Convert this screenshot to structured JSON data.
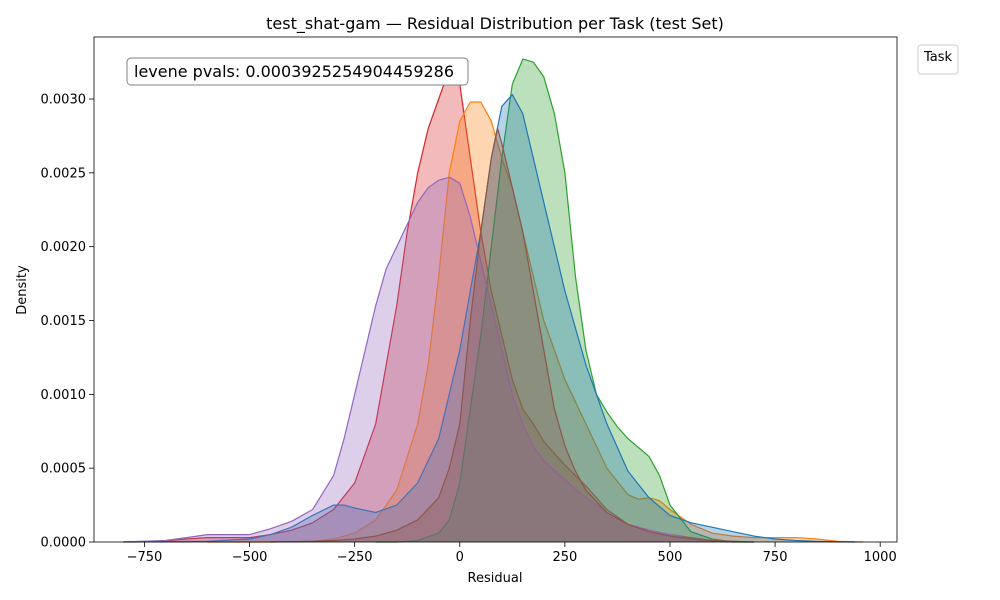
{
  "chart_data": {
    "type": "area",
    "title": "test_shat-gam — Residual Distribution per Task (test Set)",
    "xlabel": "Residual",
    "ylabel": "Density",
    "xlim": [
      -870,
      1040
    ],
    "ylim": [
      0,
      0.00342
    ],
    "xticks": [
      -750,
      -500,
      -250,
      0,
      250,
      500,
      750,
      1000
    ],
    "xtick_labels": [
      "−750",
      "−500",
      "−250",
      "0",
      "250",
      "500",
      "750",
      "1000"
    ],
    "yticks": [
      0,
      0.0005,
      0.001,
      0.0015,
      0.002,
      0.0025,
      0.003
    ],
    "ytick_labels": [
      "0.0000",
      "0.0005",
      "0.0010",
      "0.0015",
      "0.0020",
      "0.0025",
      "0.0030"
    ],
    "grid": false,
    "annotation": "levene pvals: 0.0003925254904459286",
    "legend": {
      "title": "Task",
      "position": "upper-right-outside",
      "entries": []
    },
    "series": [
      {
        "color": "#d62728",
        "points": [
          [
            -800,
            0
          ],
          [
            -700,
            8e-06
          ],
          [
            -650,
            2e-05
          ],
          [
            -600,
            3e-05
          ],
          [
            -550,
            3e-05
          ],
          [
            -500,
            3e-05
          ],
          [
            -450,
            5e-05
          ],
          [
            -400,
            8e-05
          ],
          [
            -350,
            0.00013
          ],
          [
            -300,
            0.00022
          ],
          [
            -250,
            0.0004
          ],
          [
            -200,
            0.0008
          ],
          [
            -175,
            0.0012
          ],
          [
            -150,
            0.0016
          ],
          [
            -125,
            0.0021
          ],
          [
            -100,
            0.0025
          ],
          [
            -75,
            0.0028
          ],
          [
            -50,
            0.003
          ],
          [
            -25,
            0.0032
          ],
          [
            -10,
            0.00322
          ],
          [
            0,
            0.0031
          ],
          [
            25,
            0.0026
          ],
          [
            50,
            0.0021
          ],
          [
            75,
            0.0017
          ],
          [
            100,
            0.0014
          ],
          [
            125,
            0.0011
          ],
          [
            150,
            0.0009
          ],
          [
            175,
            0.0008
          ],
          [
            200,
            0.00068
          ],
          [
            250,
            0.00052
          ],
          [
            300,
            0.00038
          ],
          [
            350,
            0.00022
          ],
          [
            400,
            0.00012
          ],
          [
            450,
            8e-05
          ],
          [
            500,
            5e-05
          ],
          [
            550,
            3e-05
          ],
          [
            600,
            1e-05
          ],
          [
            650,
            0
          ]
        ]
      },
      {
        "color": "#ff7f0e",
        "points": [
          [
            -600,
            0
          ],
          [
            -450,
            0
          ],
          [
            -350,
            5e-06
          ],
          [
            -300,
            2e-05
          ],
          [
            -250,
            6e-05
          ],
          [
            -200,
            0.00015
          ],
          [
            -150,
            0.00035
          ],
          [
            -100,
            0.0008
          ],
          [
            -75,
            0.0012
          ],
          [
            -50,
            0.0018
          ],
          [
            -25,
            0.0025
          ],
          [
            0,
            0.00285
          ],
          [
            25,
            0.00298
          ],
          [
            50,
            0.00298
          ],
          [
            75,
            0.00285
          ],
          [
            100,
            0.0026
          ],
          [
            125,
            0.0024
          ],
          [
            150,
            0.0021
          ],
          [
            175,
            0.0018
          ],
          [
            200,
            0.0015
          ],
          [
            250,
            0.0011
          ],
          [
            300,
            0.0008
          ],
          [
            350,
            0.0005
          ],
          [
            400,
            0.00032
          ],
          [
            425,
            0.00029
          ],
          [
            450,
            0.0003
          ],
          [
            475,
            0.00028
          ],
          [
            500,
            0.00022
          ],
          [
            550,
            0.00012
          ],
          [
            600,
            6e-05
          ],
          [
            650,
            4e-05
          ],
          [
            700,
            3e-05
          ],
          [
            750,
            3e-05
          ],
          [
            800,
            3e-05
          ],
          [
            850,
            2e-05
          ],
          [
            900,
            5e-06
          ],
          [
            960,
            0
          ]
        ]
      },
      {
        "color": "#2ca02c",
        "points": [
          [
            -200,
            0
          ],
          [
            -150,
            0
          ],
          [
            -100,
            1e-05
          ],
          [
            -50,
            6e-05
          ],
          [
            -25,
            0.00015
          ],
          [
            0,
            0.0004
          ],
          [
            25,
            0.0009
          ],
          [
            50,
            0.0014
          ],
          [
            75,
            0.002
          ],
          [
            100,
            0.0026
          ],
          [
            125,
            0.0031
          ],
          [
            150,
            0.00327
          ],
          [
            175,
            0.00325
          ],
          [
            200,
            0.00315
          ],
          [
            225,
            0.0029
          ],
          [
            250,
            0.0025
          ],
          [
            275,
            0.0018
          ],
          [
            300,
            0.0013
          ],
          [
            325,
            0.001
          ],
          [
            350,
            0.00088
          ],
          [
            375,
            0.00078
          ],
          [
            400,
            0.0007
          ],
          [
            425,
            0.00064
          ],
          [
            450,
            0.00058
          ],
          [
            475,
            0.00045
          ],
          [
            500,
            0.00025
          ],
          [
            550,
            7e-05
          ],
          [
            600,
            2e-05
          ],
          [
            650,
            0
          ],
          [
            700,
            0
          ]
        ]
      },
      {
        "color": "#1f77b4",
        "points": [
          [
            -800,
            0
          ],
          [
            -600,
            5e-06
          ],
          [
            -500,
            2e-05
          ],
          [
            -450,
            5e-05
          ],
          [
            -400,
            0.0001
          ],
          [
            -350,
            0.00018
          ],
          [
            -300,
            0.00025
          ],
          [
            -275,
            0.00025
          ],
          [
            -250,
            0.00023
          ],
          [
            -200,
            0.0002
          ],
          [
            -150,
            0.00025
          ],
          [
            -100,
            0.0004
          ],
          [
            -50,
            0.0007
          ],
          [
            0,
            0.0013
          ],
          [
            50,
            0.0021
          ],
          [
            75,
            0.0026
          ],
          [
            100,
            0.00295
          ],
          [
            125,
            0.00303
          ],
          [
            150,
            0.0029
          ],
          [
            175,
            0.0026
          ],
          [
            200,
            0.0023
          ],
          [
            250,
            0.0017
          ],
          [
            300,
            0.0012
          ],
          [
            350,
            0.0008
          ],
          [
            400,
            0.00048
          ],
          [
            450,
            0.0003
          ],
          [
            500,
            0.00018
          ],
          [
            550,
            0.00013
          ],
          [
            600,
            0.0001
          ],
          [
            650,
            7e-05
          ],
          [
            700,
            4e-05
          ],
          [
            750,
            2e-05
          ],
          [
            800,
            1e-05
          ],
          [
            850,
            5e-06
          ],
          [
            940,
            0
          ]
        ]
      },
      {
        "color": "#9467bd",
        "points": [
          [
            -800,
            0
          ],
          [
            -700,
            1e-05
          ],
          [
            -650,
            3e-05
          ],
          [
            -600,
            5e-05
          ],
          [
            -550,
            5e-05
          ],
          [
            -500,
            5e-05
          ],
          [
            -450,
            9e-05
          ],
          [
            -400,
            0.00014
          ],
          [
            -350,
            0.00022
          ],
          [
            -300,
            0.00045
          ],
          [
            -275,
            0.0007
          ],
          [
            -250,
            0.001
          ],
          [
            -225,
            0.0013
          ],
          [
            -200,
            0.0016
          ],
          [
            -175,
            0.00185
          ],
          [
            -150,
            0.002
          ],
          [
            -125,
            0.00215
          ],
          [
            -100,
            0.0023
          ],
          [
            -75,
            0.0024
          ],
          [
            -50,
            0.00245
          ],
          [
            -25,
            0.00247
          ],
          [
            0,
            0.00243
          ],
          [
            25,
            0.0022
          ],
          [
            50,
            0.0019
          ],
          [
            75,
            0.0016
          ],
          [
            100,
            0.0013
          ],
          [
            125,
            0.001
          ],
          [
            150,
            0.0008
          ],
          [
            175,
            0.00065
          ],
          [
            200,
            0.00055
          ],
          [
            250,
            0.00042
          ],
          [
            300,
            0.0003
          ],
          [
            350,
            0.0002
          ],
          [
            400,
            0.00012
          ],
          [
            450,
            8e-05
          ],
          [
            500,
            5e-05
          ],
          [
            550,
            2e-05
          ],
          [
            600,
            1e-05
          ],
          [
            650,
            0
          ]
        ]
      },
      {
        "color": "#8c564b",
        "points": [
          [
            -450,
            0
          ],
          [
            -350,
            5e-06
          ],
          [
            -300,
            1e-05
          ],
          [
            -250,
            2e-05
          ],
          [
            -200,
            4e-05
          ],
          [
            -150,
            8e-05
          ],
          [
            -100,
            0.00015
          ],
          [
            -50,
            0.0003
          ],
          [
            -25,
            0.0005
          ],
          [
            0,
            0.0008
          ],
          [
            25,
            0.0015
          ],
          [
            50,
            0.0021
          ],
          [
            75,
            0.0026
          ],
          [
            90,
            0.0028
          ],
          [
            100,
            0.0027
          ],
          [
            125,
            0.0024
          ],
          [
            150,
            0.0021
          ],
          [
            175,
            0.0017
          ],
          [
            200,
            0.0013
          ],
          [
            225,
            0.0009
          ],
          [
            250,
            0.00065
          ],
          [
            275,
            0.00048
          ],
          [
            300,
            0.00035
          ],
          [
            350,
            0.0002
          ],
          [
            400,
            0.00012
          ],
          [
            450,
            7e-05
          ],
          [
            500,
            4e-05
          ],
          [
            550,
            2e-05
          ],
          [
            600,
            1e-05
          ],
          [
            700,
            0
          ]
        ]
      }
    ]
  }
}
